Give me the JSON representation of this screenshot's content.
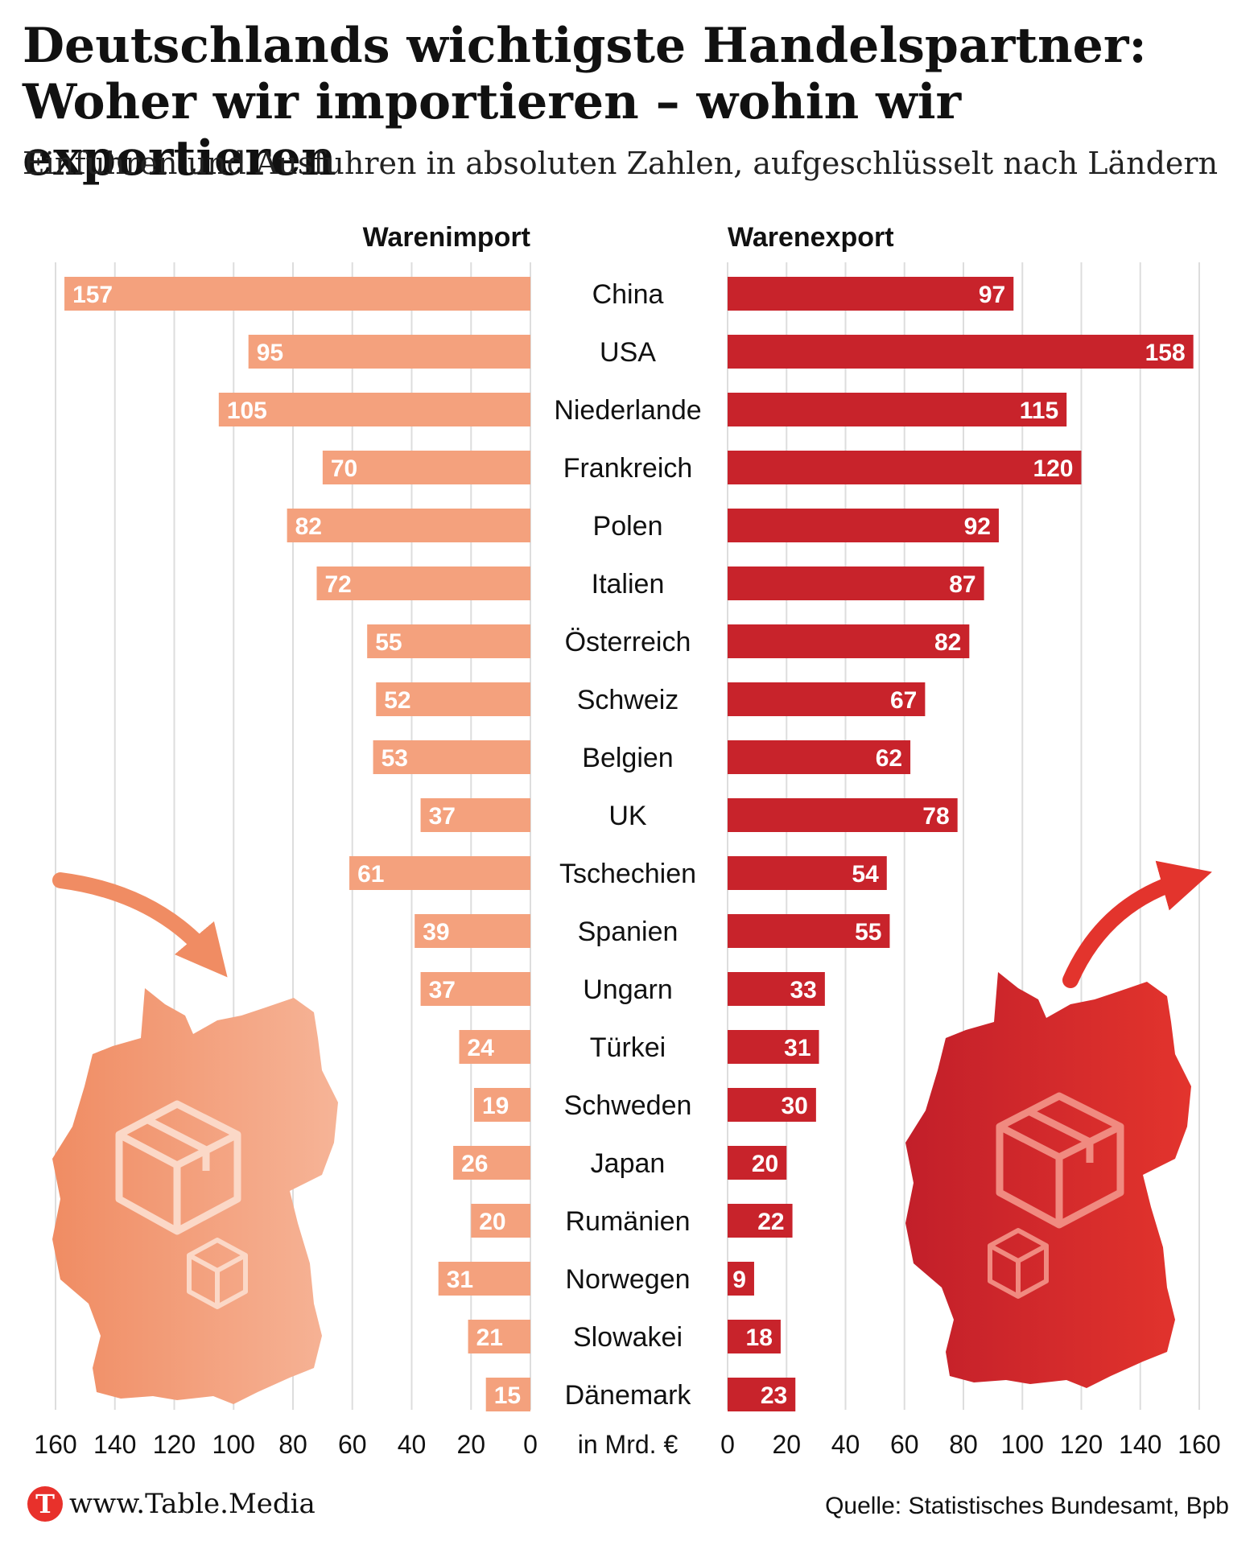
{
  "title_line1": "Deutschlands wichtigste Handelspartner:",
  "title_line2": "Woher wir importieren – wohin wir exportieren",
  "subtitle": "Einfuhren und Ausfuhren in absoluten Zahlen, aufgeschlüsselt nach Ländern",
  "footer": {
    "logo_letter": "T",
    "url": "www.Table.Media",
    "source": "Quelle: Statistisches Bundesamt, Bpb"
  },
  "colors": {
    "import": "#f4a17d",
    "export": "#c8232b",
    "grid": "#dddddd",
    "logo": "#e8312b"
  },
  "chart_data": {
    "type": "bar",
    "orientation": "horizontal",
    "layout": "butterfly",
    "unit_label": "in Mrd. €",
    "categories": [
      "China",
      "USA",
      "Niederlande",
      "Frankreich",
      "Polen",
      "Italien",
      "Österreich",
      "Schweiz",
      "Belgien",
      "UK",
      "Tschechien",
      "Spanien",
      "Ungarn",
      "Türkei",
      "Schweden",
      "Japan",
      "Rumänien",
      "Norwegen",
      "Slowakei",
      "Dänemark"
    ],
    "series": [
      {
        "name": "Warenimport",
        "values": [
          157,
          95,
          105,
          70,
          82,
          72,
          55,
          52,
          53,
          37,
          61,
          39,
          37,
          24,
          19,
          26,
          20,
          31,
          21,
          15
        ]
      },
      {
        "name": "Warenexport",
        "values": [
          97,
          158,
          115,
          120,
          92,
          87,
          82,
          67,
          62,
          78,
          54,
          55,
          33,
          31,
          30,
          20,
          22,
          9,
          18,
          23
        ]
      }
    ],
    "xlim": [
      0,
      160
    ],
    "xticks": [
      160,
      140,
      120,
      100,
      80,
      60,
      40,
      20,
      0
    ],
    "grid": true
  }
}
